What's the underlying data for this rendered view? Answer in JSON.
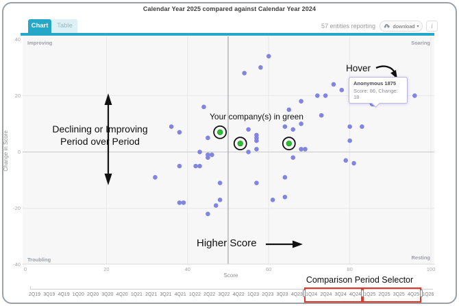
{
  "header": {
    "title": "Calendar Year 2025 compared against Calendar Year 2024",
    "tabs": [
      {
        "label": "Chart",
        "active": true
      },
      {
        "label": "Table",
        "active": false
      }
    ],
    "entities_reporting": "57 entities reporting",
    "download_label": "download",
    "info_label": "i"
  },
  "chart_data": {
    "type": "scatter",
    "title": "Calendar Year 2025 compared against Calendar Year 2024",
    "xlabel": "Score",
    "ylabel": "Change in Score",
    "xlim": [
      0,
      100
    ],
    "ylim": [
      -40,
      40
    ],
    "xticks": [
      0,
      20,
      40,
      60,
      80,
      100
    ],
    "yticks": [
      40,
      20,
      0,
      -20,
      -40
    ],
    "grid": true,
    "quadrant_labels": {
      "top_left": "Improving",
      "top_right": "Soaring",
      "bottom_left": "Troubling",
      "bottom_right": "Resting"
    },
    "reference_lines": {
      "vertical_score": 50,
      "horizontal_change": 0
    },
    "points": [
      [
        60,
        34
      ],
      [
        58,
        30
      ],
      [
        54,
        28
      ],
      [
        76,
        24
      ],
      [
        78,
        22
      ],
      [
        72,
        20
      ],
      [
        74,
        20
      ],
      [
        96,
        20
      ],
      [
        68,
        18
      ],
      [
        85.5,
        17
      ],
      [
        65,
        15
      ],
      [
        44,
        16
      ],
      [
        73,
        13
      ],
      [
        36,
        9
      ],
      [
        38,
        7
      ],
      [
        45,
        5
      ],
      [
        43,
        0
      ],
      [
        45,
        -1
      ],
      [
        45,
        -2
      ],
      [
        46,
        -1
      ],
      [
        42,
        -5
      ],
      [
        43,
        -5
      ],
      [
        38,
        -5
      ],
      [
        32,
        -9
      ],
      [
        48,
        -11
      ],
      [
        55,
        8
      ],
      [
        57,
        6
      ],
      [
        57,
        5
      ],
      [
        57,
        4
      ],
      [
        64,
        9
      ],
      [
        66,
        8
      ],
      [
        68,
        10
      ],
      [
        80,
        9
      ],
      [
        83,
        9
      ],
      [
        80,
        4
      ],
      [
        68,
        1
      ],
      [
        69,
        1
      ],
      [
        55,
        0
      ],
      [
        57,
        1
      ],
      [
        66,
        -2
      ],
      [
        79,
        -3
      ],
      [
        81,
        -4
      ],
      [
        64,
        -9
      ],
      [
        57,
        -11
      ],
      [
        38,
        -18
      ],
      [
        39,
        -18
      ],
      [
        48,
        -17
      ],
      [
        47,
        -19
      ],
      [
        45,
        -22
      ],
      [
        61,
        -17
      ],
      [
        64,
        -16
      ]
    ],
    "green_points": [
      [
        48,
        7
      ],
      [
        53,
        3
      ],
      [
        65,
        3
      ]
    ],
    "highlighted_point": {
      "score": 86,
      "change": 18,
      "name": "Anonymous 1875"
    },
    "colors": {
      "dot": "#8184e1",
      "green_dot": "#25c32d",
      "highlight_dot": "#8e91e6",
      "accent_teal": "#25a8c8",
      "selection_red": "#e53529",
      "plot_bg": "#f7f7f8"
    }
  },
  "tooltip": {
    "title": "Anonymous 1875",
    "detail": "Score: 86, Change: 18"
  },
  "annotations": {
    "declining_line1": "Declining or Improving",
    "declining_line2": "Period over Period",
    "green_note": "Your company(s) in green",
    "higher_score": "Higher Score",
    "hover": "Hover",
    "selector_label": "Comparison Period Selector"
  },
  "selector": {
    "quarters": [
      "2Q19",
      "3Q19",
      "4Q19",
      "1Q20",
      "2Q20",
      "3Q20",
      "4Q20",
      "1Q21",
      "2Q21",
      "3Q21",
      "4Q21",
      "1Q22",
      "2Q22",
      "3Q22",
      "4Q22",
      "1Q23",
      "2Q23",
      "3Q23",
      "4Q23",
      "1Q24",
      "2Q24",
      "3Q24",
      "4Q24",
      "1Q25",
      "2Q25",
      "3Q25",
      "4Q25",
      "1Q26"
    ],
    "selected_ranges": [
      [
        19,
        22
      ],
      [
        23,
        26
      ]
    ]
  }
}
